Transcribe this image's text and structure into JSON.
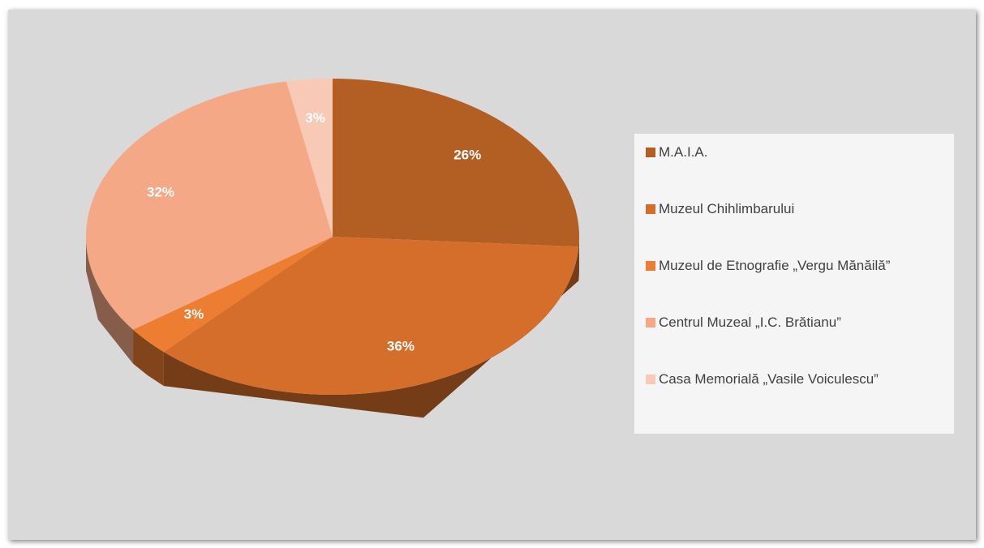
{
  "chart_data": {
    "type": "pie",
    "categories": [
      "M.A.I.A.",
      "Muzeul Chihlimbarului",
      "Muzeul de Etnografie „Vergu Mănăilă”",
      "Centrul Muzeal „I.C. Brătianu”",
      "Casa Memorială „Vasile Voiculescu”"
    ],
    "values": [
      26,
      36,
      3,
      32,
      3
    ],
    "value_labels": [
      "26%",
      "36%",
      "3%",
      "32%",
      "3%"
    ],
    "colors": [
      "#b35e22",
      "#d46e2a",
      "#ed7d31",
      "#f4a886",
      "#f8c9b5"
    ],
    "legend": "right"
  }
}
